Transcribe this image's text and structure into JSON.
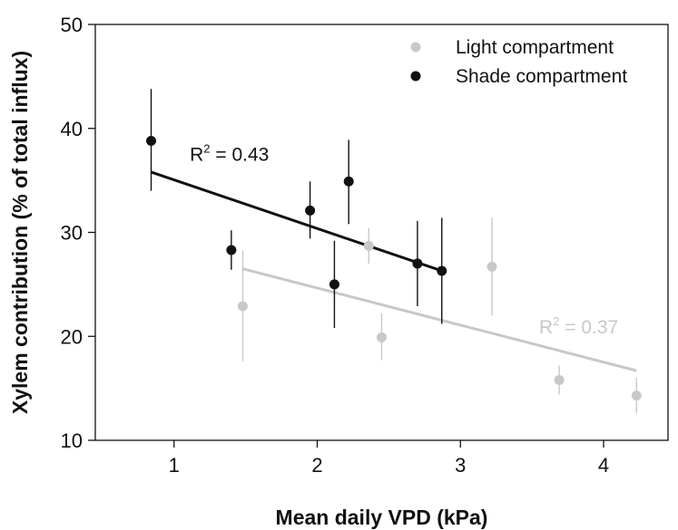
{
  "chart_data": {
    "type": "scatter",
    "xlabel": "Mean daily VPD (kPa)",
    "ylabel": "Xylem contribution (% of total influx)",
    "xlim": [
      0.45,
      4.45
    ],
    "ylim": [
      10,
      50
    ],
    "xticks": [
      1,
      2,
      3,
      4
    ],
    "yticks": [
      10,
      20,
      30,
      40,
      50
    ],
    "grid": false,
    "legend_position": "top-right",
    "series": [
      {
        "name": "Light compartment",
        "color": "#c8c8c8",
        "points": [
          {
            "x": 1.48,
            "y": 22.9,
            "lo": 17.6,
            "hi": 28.2
          },
          {
            "x": 2.36,
            "y": 28.7,
            "lo": 27.0,
            "hi": 30.4
          },
          {
            "x": 2.45,
            "y": 19.9,
            "lo": 17.7,
            "hi": 22.2
          },
          {
            "x": 3.22,
            "y": 26.7,
            "lo": 22.0,
            "hi": 31.4
          },
          {
            "x": 3.69,
            "y": 15.8,
            "lo": 14.4,
            "hi": 17.2
          },
          {
            "x": 4.23,
            "y": 14.3,
            "lo": 12.6,
            "hi": 16.0
          }
        ],
        "fit": {
          "x1": 1.48,
          "y1": 26.5,
          "x2": 4.23,
          "y2": 16.7,
          "r2_prefix": "R",
          "r2_sup": "2",
          "r2_value": " = 0.37",
          "label_x": 3.55,
          "label_y": 20.3
        }
      },
      {
        "name": "Shade compartment",
        "color": "#111111",
        "points": [
          {
            "x": 0.84,
            "y": 38.8,
            "lo": 34.0,
            "hi": 43.8
          },
          {
            "x": 1.4,
            "y": 28.3,
            "lo": 26.4,
            "hi": 30.2
          },
          {
            "x": 1.95,
            "y": 32.1,
            "lo": 29.4,
            "hi": 34.9
          },
          {
            "x": 2.12,
            "y": 25.0,
            "lo": 20.8,
            "hi": 29.2
          },
          {
            "x": 2.22,
            "y": 34.9,
            "lo": 30.8,
            "hi": 38.9
          },
          {
            "x": 2.7,
            "y": 27.0,
            "lo": 22.9,
            "hi": 31.1
          },
          {
            "x": 2.87,
            "y": 26.3,
            "lo": 21.2,
            "hi": 31.4
          }
        ],
        "fit": {
          "x1": 0.84,
          "y1": 35.8,
          "x2": 2.87,
          "y2": 26.3,
          "r2_prefix": "R",
          "r2_sup": "2",
          "r2_value": " = 0.43",
          "label_x": 1.11,
          "label_y": 36.9
        }
      }
    ]
  }
}
